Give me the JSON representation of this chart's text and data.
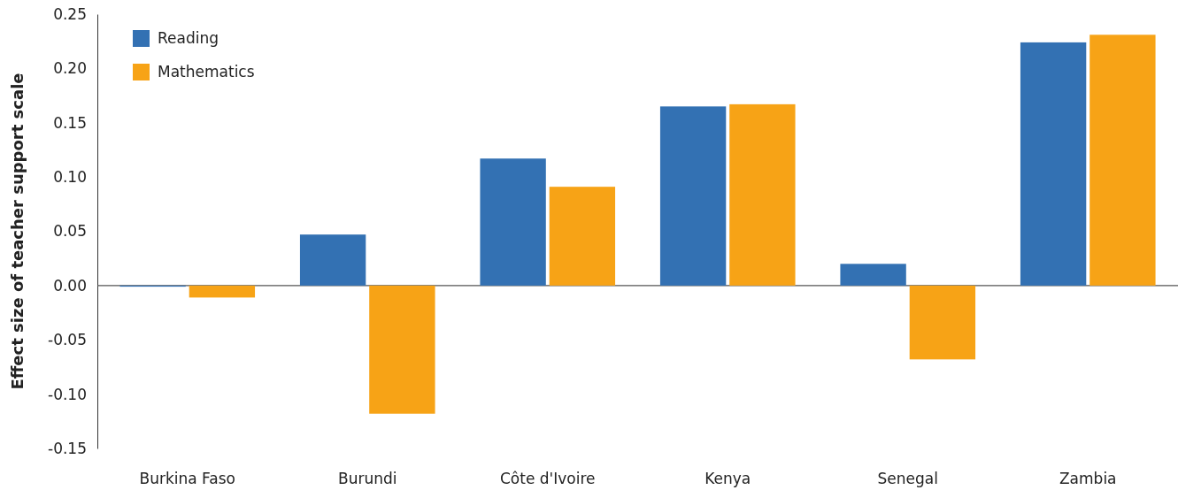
{
  "chart_data": {
    "type": "bar",
    "ylabel": "Effect size of teacher support scale",
    "categories": [
      "Burkina Faso",
      "Burundi",
      "Côte d'Ivoire",
      "Kenya",
      "Senegal",
      "Zambia"
    ],
    "series": [
      {
        "name": "Reading",
        "color": "#3371b3",
        "values": [
          -0.001,
          0.047,
          0.117,
          0.165,
          0.02,
          0.224
        ]
      },
      {
        "name": "Mathematics",
        "color": "#f7a316",
        "values": [
          -0.011,
          -0.118,
          0.091,
          0.167,
          -0.068,
          0.231
        ]
      }
    ],
    "ylim": [
      -0.15,
      0.25
    ],
    "yticks": [
      {
        "value": -0.15,
        "label": "-0.15"
      },
      {
        "value": -0.1,
        "label": "-0.10"
      },
      {
        "value": -0.05,
        "label": "-0.05"
      },
      {
        "value": 0,
        "label": "0.00"
      },
      {
        "value": 0.05,
        "label": "0.05"
      },
      {
        "value": 0.1,
        "label": "0.10"
      },
      {
        "value": 0.15,
        "label": "0.15"
      },
      {
        "value": 0.2,
        "label": "0.20"
      },
      {
        "value": 0.25,
        "label": "0.25"
      }
    ],
    "legend": "top left"
  }
}
